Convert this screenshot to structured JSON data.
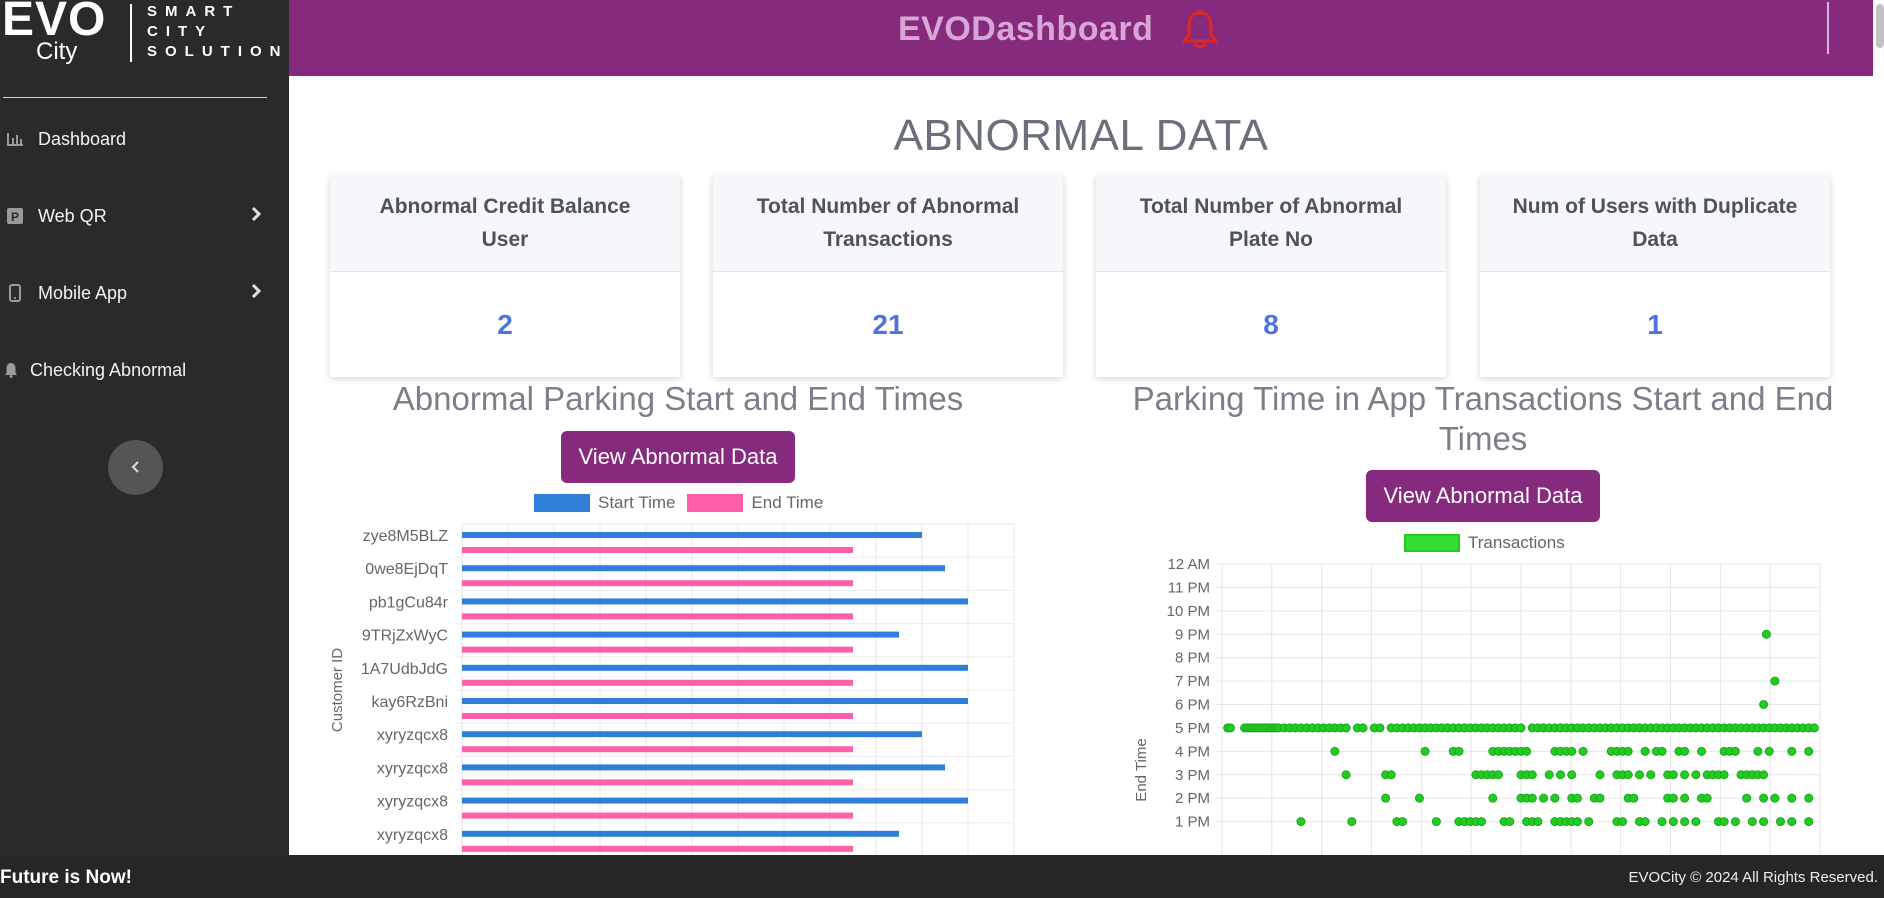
{
  "logo": {
    "brand": "EVO",
    "city": "City",
    "tagline_lines": [
      "SMART",
      "CITY",
      "SOLUTION"
    ]
  },
  "sidebar": {
    "items": [
      {
        "label": "Dashboard",
        "icon": "bar-chart-icon"
      },
      {
        "label": "Web QR",
        "icon": "parking-icon"
      },
      {
        "label": "Mobile App",
        "icon": "mobile-icon"
      },
      {
        "label": "Checking Abnormal",
        "icon": "bell-icon"
      }
    ],
    "collapse_icon": "chevron-left-icon"
  },
  "header": {
    "title": "EVODashboard",
    "bell_icon": "bell-icon",
    "bell_color": "#e0261f",
    "bg_color": "#862a7e"
  },
  "main": {
    "title": "ABNORMAL DATA",
    "cards": [
      {
        "label": "Abnormal Credit Balance User",
        "value": "2"
      },
      {
        "label": "Total Number of Abnormal Transactions",
        "value": "21"
      },
      {
        "label": "Total Number of Abnormal Plate No",
        "value": "8"
      },
      {
        "label": "Num of Users with Duplicate Data",
        "value": "1"
      }
    ],
    "left_section": {
      "title": "Abnormal Parking Start and End Times",
      "button": "View Abnormal Data"
    },
    "right_section": {
      "title": "Parking Time in App Transactions Start and End Times",
      "button": "View Abnormal Data"
    }
  },
  "chart_data": [
    {
      "type": "bar",
      "orientation": "horizontal",
      "ylabel": "Customer ID",
      "categories": [
        "zye8M5BLZ",
        "0we8EjDqT",
        "pb1gCu84r",
        "9TRjZxWyC",
        "1A7UdbJdG",
        "kay6RzBni",
        "xyryzqcx8",
        "xyryzqcx8",
        "xyryzqcx8",
        "xyryzqcx8"
      ],
      "series": [
        {
          "name": "Start Time",
          "color": "#2f7ed8",
          "values": [
            20,
            21,
            22,
            19,
            22,
            22,
            20,
            21,
            22,
            19
          ]
        },
        {
          "name": "End Time",
          "color": "#ff5fa9",
          "values": [
            17,
            17,
            17,
            17,
            17,
            17,
            17,
            17,
            17,
            17
          ]
        }
      ],
      "xlim": [
        0,
        24
      ],
      "grid": true,
      "legend": "top-center"
    },
    {
      "type": "scatter",
      "ylabel": "End Time",
      "series": [
        {
          "name": "Transactions",
          "color": "#22cc22",
          "rows": [
            {
              "y": 17,
              "x": [
                1,
                1.5,
                4,
                4.5,
                5,
                5.5,
                6,
                6.5,
                7,
                7.5,
                8,
                8.5,
                9,
                9.5,
                10,
                11,
                12,
                13,
                14,
                15,
                16,
                17,
                18,
                19,
                20,
                21,
                22,
                24,
                25,
                27,
                28,
                30,
                31,
                32,
                33,
                34,
                35,
                36,
                37,
                38,
                39,
                40,
                41,
                42,
                43,
                44,
                45,
                46,
                47,
                48,
                49,
                50,
                51,
                52,
                53,
                55,
                56,
                57,
                58,
                59,
                60,
                61,
                62,
                63,
                64,
                65,
                66,
                67,
                68,
                69,
                70,
                71,
                72,
                73,
                74,
                75,
                76,
                77,
                78,
                79,
                80,
                81,
                82,
                83,
                84,
                85,
                86,
                87,
                88,
                89,
                90,
                91,
                92,
                93,
                94,
                95,
                96,
                97,
                98,
                99,
                100,
                101,
                102,
                103,
                104,
                105
              ]
            },
            {
              "y": 16,
              "x": [
                20,
                36,
                41,
                42,
                48,
                49,
                50,
                51,
                52,
                53,
                54,
                59,
                60,
                61,
                62,
                64,
                69,
                70,
                71,
                72,
                75,
                77,
                78,
                81,
                82,
                85,
                89,
                90,
                91,
                95,
                97,
                101,
                104
              ]
            },
            {
              "y": 15,
              "x": [
                22,
                29,
                30,
                45,
                46,
                47,
                48,
                49,
                53,
                54,
                55,
                58,
                60,
                62,
                67,
                70,
                71,
                72,
                74,
                76,
                79,
                80,
                82,
                84,
                86,
                87,
                88,
                89,
                92,
                93,
                94,
                95,
                96
              ]
            },
            {
              "y": 14,
              "x": [
                29,
                35,
                48,
                53,
                54,
                55,
                57,
                59,
                62,
                63,
                66,
                67,
                72,
                73,
                79,
                80,
                82,
                85,
                86,
                93,
                96,
                98,
                101,
                104
              ]
            },
            {
              "y": 13,
              "x": [
                14,
                23,
                31,
                32,
                38,
                42,
                43,
                44,
                45,
                46,
                50,
                51,
                54,
                55,
                56,
                59,
                60,
                61,
                62,
                63,
                65,
                70,
                71,
                74,
                75,
                78,
                80,
                82,
                84,
                88,
                89,
                91,
                94,
                96,
                99,
                101,
                104
              ]
            },
            {
              "y": 18,
              "x": [
                96
              ]
            },
            {
              "y": 19,
              "x": [
                98
              ]
            },
            {
              "y": 21,
              "x": [
                96.5
              ]
            }
          ]
        }
      ],
      "ylim": [
        12,
        24
      ],
      "y_tick_labels": [
        "1 PM",
        "2 PM",
        "3 PM",
        "4 PM",
        "5 PM",
        "6 PM",
        "7 PM",
        "8 PM",
        "9 PM",
        "10 PM",
        "11 PM",
        "12 AM"
      ],
      "y_tick_values": [
        13,
        14,
        15,
        16,
        17,
        18,
        19,
        20,
        21,
        22,
        23,
        24
      ],
      "xlim": [
        0,
        106
      ],
      "grid": true,
      "legend": "top-center"
    }
  ],
  "footer": {
    "tagline": "Future is Now!",
    "copyright": "EVOCity © 2024 All Rights Reserved."
  }
}
